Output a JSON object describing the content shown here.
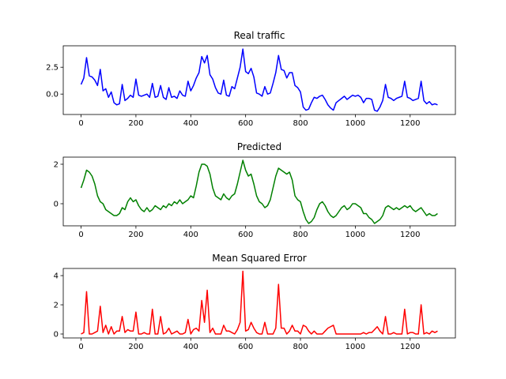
{
  "chart_data": [
    {
      "type": "line",
      "title": "Real traffic",
      "color": "#0000ff",
      "x": [
        0,
        10,
        20,
        30,
        40,
        50,
        60,
        70,
        80,
        90,
        100,
        110,
        120,
        130,
        140,
        150,
        160,
        170,
        180,
        190,
        200,
        210,
        220,
        230,
        240,
        250,
        260,
        270,
        280,
        290,
        300,
        310,
        320,
        330,
        340,
        350,
        360,
        370,
        380,
        390,
        400,
        410,
        420,
        430,
        440,
        450,
        460,
        470,
        480,
        490,
        500,
        510,
        520,
        530,
        540,
        550,
        560,
        570,
        580,
        590,
        600,
        610,
        620,
        630,
        640,
        650,
        660,
        670,
        680,
        690,
        700,
        710,
        720,
        730,
        740,
        750,
        760,
        770,
        780,
        790,
        800,
        810,
        820,
        830,
        840,
        850,
        860,
        870,
        880,
        890,
        900,
        910,
        920,
        930,
        940,
        950,
        960,
        970,
        980,
        990,
        1000,
        1010,
        1020,
        1030,
        1040,
        1050,
        1060,
        1070,
        1080,
        1090,
        1100,
        1110,
        1120,
        1130,
        1140,
        1150,
        1160,
        1170,
        1180,
        1190,
        1200,
        1210,
        1220,
        1230,
        1240,
        1250,
        1260,
        1270,
        1280,
        1290,
        1300
      ],
      "values": [
        0.9,
        1.5,
        3.4,
        1.7,
        1.6,
        1.3,
        0.8,
        2.3,
        0.3,
        0.5,
        -0.3,
        0.2,
        -0.8,
        -1.0,
        -0.9,
        0.9,
        -0.6,
        -0.4,
        -0.1,
        -0.3,
        1.4,
        -0.1,
        -0.2,
        -0.1,
        0.0,
        -0.3,
        1.0,
        -0.3,
        -0.2,
        0.8,
        -0.3,
        -0.5,
        0.6,
        -0.3,
        -0.2,
        -0.4,
        0.3,
        -0.1,
        -0.2,
        1.2,
        0.3,
        0.8,
        1.5,
        2.0,
        3.5,
        2.9,
        3.6,
        1.8,
        1.4,
        0.6,
        0.1,
        0.0,
        1.3,
        -0.1,
        -0.2,
        0.7,
        0.5,
        1.5,
        2.5,
        4.2,
        2.1,
        1.9,
        2.4,
        1.6,
        0.1,
        0.0,
        -0.2,
        0.7,
        0.0,
        0.1,
        1.0,
        2.0,
        3.6,
        2.3,
        2.2,
        1.5,
        2.0,
        2.0,
        0.8,
        0.6,
        0.2,
        -1.2,
        -1.5,
        -1.4,
        -0.8,
        -0.3,
        -0.4,
        -0.2,
        -0.1,
        -0.5,
        -1.0,
        -1.3,
        -1.5,
        -0.8,
        -0.6,
        -0.4,
        -0.2,
        -0.5,
        -0.3,
        -0.1,
        -0.2,
        -0.1,
        -0.3,
        -0.8,
        -0.4,
        -0.4,
        -0.5,
        -1.5,
        -1.6,
        -1.2,
        -0.6,
        0.9,
        -0.3,
        -0.4,
        -0.6,
        -0.4,
        -0.3,
        -0.2,
        1.2,
        -0.3,
        -0.4,
        -0.6,
        -0.5,
        -0.4,
        1.2,
        -0.6,
        -0.9,
        -0.7,
        -1.0,
        -0.9,
        -1.0
      ],
      "xlim": [
        -65,
        1365
      ],
      "xticks": [
        0,
        200,
        400,
        600,
        800,
        1000,
        1200
      ],
      "ylim": [
        -1.9,
        4.5
      ],
      "yticks": [
        {
          "value": 0,
          "label": "0.0"
        },
        2.5
      ]
    },
    {
      "type": "line",
      "title": "Predicted",
      "color": "#008000",
      "x": [
        0,
        10,
        20,
        30,
        40,
        50,
        60,
        70,
        80,
        90,
        100,
        110,
        120,
        130,
        140,
        150,
        160,
        170,
        180,
        190,
        200,
        210,
        220,
        230,
        240,
        250,
        260,
        270,
        280,
        290,
        300,
        310,
        320,
        330,
        340,
        350,
        360,
        370,
        380,
        390,
        400,
        410,
        420,
        430,
        440,
        450,
        460,
        470,
        480,
        490,
        500,
        510,
        520,
        530,
        540,
        550,
        560,
        570,
        580,
        590,
        600,
        610,
        620,
        630,
        640,
        650,
        660,
        670,
        680,
        690,
        700,
        710,
        720,
        730,
        740,
        750,
        760,
        770,
        780,
        790,
        800,
        810,
        820,
        830,
        840,
        850,
        860,
        870,
        880,
        890,
        900,
        910,
        920,
        930,
        940,
        950,
        960,
        970,
        980,
        990,
        1000,
        1010,
        1020,
        1030,
        1040,
        1050,
        1060,
        1070,
        1080,
        1090,
        1100,
        1110,
        1120,
        1130,
        1140,
        1150,
        1160,
        1170,
        1180,
        1190,
        1200,
        1210,
        1220,
        1230,
        1240,
        1250,
        1260,
        1270,
        1280,
        1290,
        1300
      ],
      "values": [
        0.8,
        1.2,
        1.7,
        1.6,
        1.4,
        1.0,
        0.4,
        0.1,
        0.0,
        -0.3,
        -0.4,
        -0.5,
        -0.6,
        -0.6,
        -0.5,
        -0.2,
        -0.3,
        0.1,
        0.3,
        0.1,
        0.2,
        -0.1,
        -0.3,
        -0.4,
        -0.2,
        -0.4,
        -0.3,
        -0.1,
        -0.2,
        -0.3,
        -0.1,
        -0.2,
        0.0,
        -0.1,
        0.1,
        0.0,
        0.2,
        0.0,
        0.1,
        0.2,
        0.4,
        0.3,
        0.9,
        1.6,
        2.0,
        2.0,
        1.9,
        1.5,
        0.8,
        0.4,
        0.3,
        0.2,
        0.5,
        0.3,
        0.2,
        0.4,
        0.5,
        1.0,
        1.6,
        2.2,
        1.7,
        1.4,
        1.5,
        1.0,
        0.4,
        0.1,
        0.0,
        -0.2,
        -0.1,
        0.2,
        0.8,
        1.4,
        1.8,
        1.7,
        1.6,
        1.5,
        1.6,
        1.2,
        0.4,
        0.2,
        0.1,
        -0.4,
        -0.8,
        -1.0,
        -0.9,
        -0.7,
        -0.3,
        0.0,
        0.1,
        -0.1,
        -0.4,
        -0.6,
        -0.7,
        -0.6,
        -0.4,
        -0.2,
        -0.1,
        -0.3,
        -0.2,
        0.0,
        0.0,
        -0.1,
        -0.2,
        -0.5,
        -0.5,
        -0.7,
        -0.8,
        -1.0,
        -0.9,
        -0.8,
        -0.6,
        -0.2,
        -0.1,
        -0.2,
        -0.3,
        -0.2,
        -0.3,
        -0.2,
        -0.1,
        -0.2,
        -0.1,
        -0.3,
        -0.4,
        -0.3,
        -0.2,
        -0.4,
        -0.6,
        -0.5,
        -0.6,
        -0.6,
        -0.5
      ],
      "xlim": [
        -65,
        1365
      ],
      "xticks": [
        0,
        200,
        400,
        600,
        800,
        1000,
        1200
      ],
      "ylim": [
        -1.12,
        2.36
      ],
      "yticks": [
        0,
        2
      ]
    },
    {
      "type": "line",
      "title": "Mean Squared Error",
      "color": "#ff0000",
      "x": [
        0,
        10,
        20,
        30,
        40,
        50,
        60,
        70,
        80,
        90,
        100,
        110,
        120,
        130,
        140,
        150,
        160,
        170,
        180,
        190,
        200,
        210,
        220,
        230,
        240,
        250,
        260,
        270,
        280,
        290,
        300,
        310,
        320,
        330,
        340,
        350,
        360,
        370,
        380,
        390,
        400,
        410,
        420,
        430,
        440,
        450,
        460,
        470,
        480,
        490,
        500,
        510,
        520,
        530,
        540,
        550,
        560,
        570,
        580,
        590,
        600,
        610,
        620,
        630,
        640,
        650,
        660,
        670,
        680,
        690,
        700,
        710,
        720,
        730,
        740,
        750,
        760,
        770,
        780,
        790,
        800,
        810,
        820,
        830,
        840,
        850,
        860,
        870,
        880,
        890,
        900,
        910,
        920,
        930,
        940,
        950,
        960,
        970,
        980,
        990,
        1000,
        1010,
        1020,
        1030,
        1040,
        1050,
        1060,
        1070,
        1080,
        1090,
        1100,
        1110,
        1120,
        1130,
        1140,
        1150,
        1160,
        1170,
        1180,
        1190,
        1200,
        1210,
        1220,
        1230,
        1240,
        1250,
        1260,
        1270,
        1280,
        1290,
        1300
      ],
      "values": [
        0.0,
        0.1,
        2.9,
        0.0,
        0.0,
        0.1,
        0.2,
        1.9,
        0.1,
        0.6,
        0.0,
        0.5,
        0.0,
        0.2,
        0.2,
        1.2,
        0.1,
        0.3,
        0.2,
        0.2,
        1.5,
        0.0,
        0.0,
        0.1,
        0.0,
        0.0,
        1.7,
        0.0,
        0.0,
        1.2,
        0.0,
        0.1,
        0.4,
        0.0,
        0.1,
        0.2,
        0.0,
        0.0,
        0.1,
        1.0,
        0.0,
        0.3,
        0.4,
        0.2,
        2.3,
        0.8,
        3.0,
        0.1,
        0.4,
        0.0,
        0.0,
        0.0,
        0.6,
        0.2,
        0.2,
        0.1,
        0.0,
        0.3,
        0.8,
        4.3,
        0.2,
        0.3,
        0.8,
        0.4,
        0.1,
        0.0,
        0.0,
        0.8,
        0.0,
        0.0,
        0.0,
        0.4,
        3.4,
        0.4,
        0.4,
        0.0,
        0.2,
        0.6,
        0.2,
        0.2,
        0.0,
        0.6,
        0.5,
        0.2,
        0.0,
        0.2,
        0.0,
        0.0,
        0.0,
        0.2,
        0.4,
        0.5,
        0.6,
        0.0,
        0.0,
        0.0,
        0.0,
        0.0,
        0.0,
        0.0,
        0.0,
        0.0,
        0.0,
        0.1,
        0.0,
        0.1,
        0.1,
        0.3,
        0.5,
        0.2,
        0.0,
        1.2,
        0.0,
        0.0,
        0.1,
        0.0,
        0.0,
        0.0,
        1.7,
        0.0,
        0.1,
        0.1,
        0.0,
        0.0,
        2.0,
        0.0,
        0.1,
        0.0,
        0.2,
        0.1,
        0.2
      ],
      "xlim": [
        -65,
        1365
      ],
      "xticks": [
        0,
        200,
        400,
        600,
        800,
        1000,
        1200
      ],
      "ylim": [
        -0.27,
        4.49
      ],
      "yticks": [
        0,
        2,
        4
      ]
    }
  ]
}
